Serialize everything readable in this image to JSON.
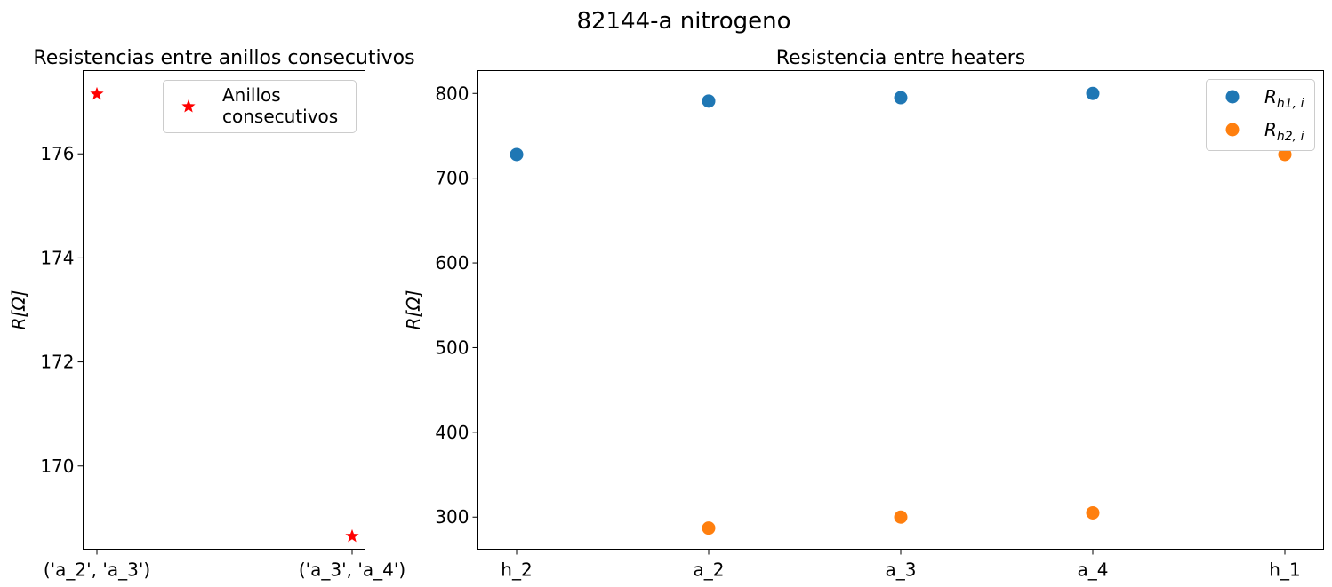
{
  "figure": {
    "suptitle": "82144-a nitrogeno"
  },
  "chart_data": [
    {
      "type": "scatter",
      "title": "Resistencias entre anillos consecutivos",
      "ylabel": "R[Ω]",
      "xlabel": "",
      "categories": [
        "('a_2', 'a_3')",
        "('a_3', 'a_4')"
      ],
      "ylim": [
        168.4,
        177.6
      ],
      "yticks": [
        170,
        172,
        174,
        176
      ],
      "grid": false,
      "legend_position": "top-right",
      "series": [
        {
          "name": "Anillos\n consecutivos",
          "marker": "star",
          "color": "#ff0000",
          "values": [
            177.15,
            168.65
          ]
        }
      ]
    },
    {
      "type": "scatter",
      "title": "Resistencia entre heaters",
      "ylabel": "R[Ω]",
      "xlabel": "",
      "categories": [
        "h_2",
        "a_2",
        "a_3",
        "a_4",
        "h_1"
      ],
      "ylim": [
        262,
        827
      ],
      "yticks": [
        300,
        400,
        500,
        600,
        700,
        800
      ],
      "grid": false,
      "legend_position": "top-right",
      "series": [
        {
          "name": "R_{h1, i}",
          "name_main": "R",
          "name_sub": "h1, i",
          "marker": "circle",
          "color": "#1f77b4",
          "values": [
            728,
            791,
            795,
            800,
            null
          ]
        },
        {
          "name": "R_{h2, i}",
          "name_main": "R",
          "name_sub": "h2, i",
          "marker": "circle",
          "color": "#ff7f0e",
          "values": [
            null,
            287,
            300,
            305,
            728
          ]
        }
      ]
    }
  ]
}
